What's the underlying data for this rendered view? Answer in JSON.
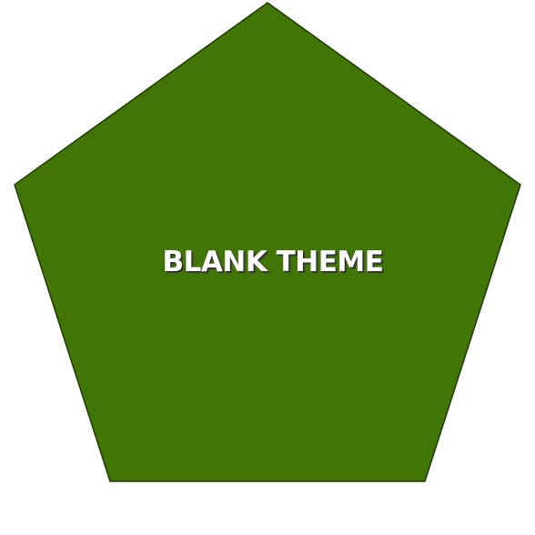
{
  "shape": {
    "kind": "pentagon",
    "fill_color": "#417505",
    "stroke_color": "#1f3a03"
  },
  "label": {
    "text": "BLANK THEME",
    "color": "#ffffff"
  }
}
